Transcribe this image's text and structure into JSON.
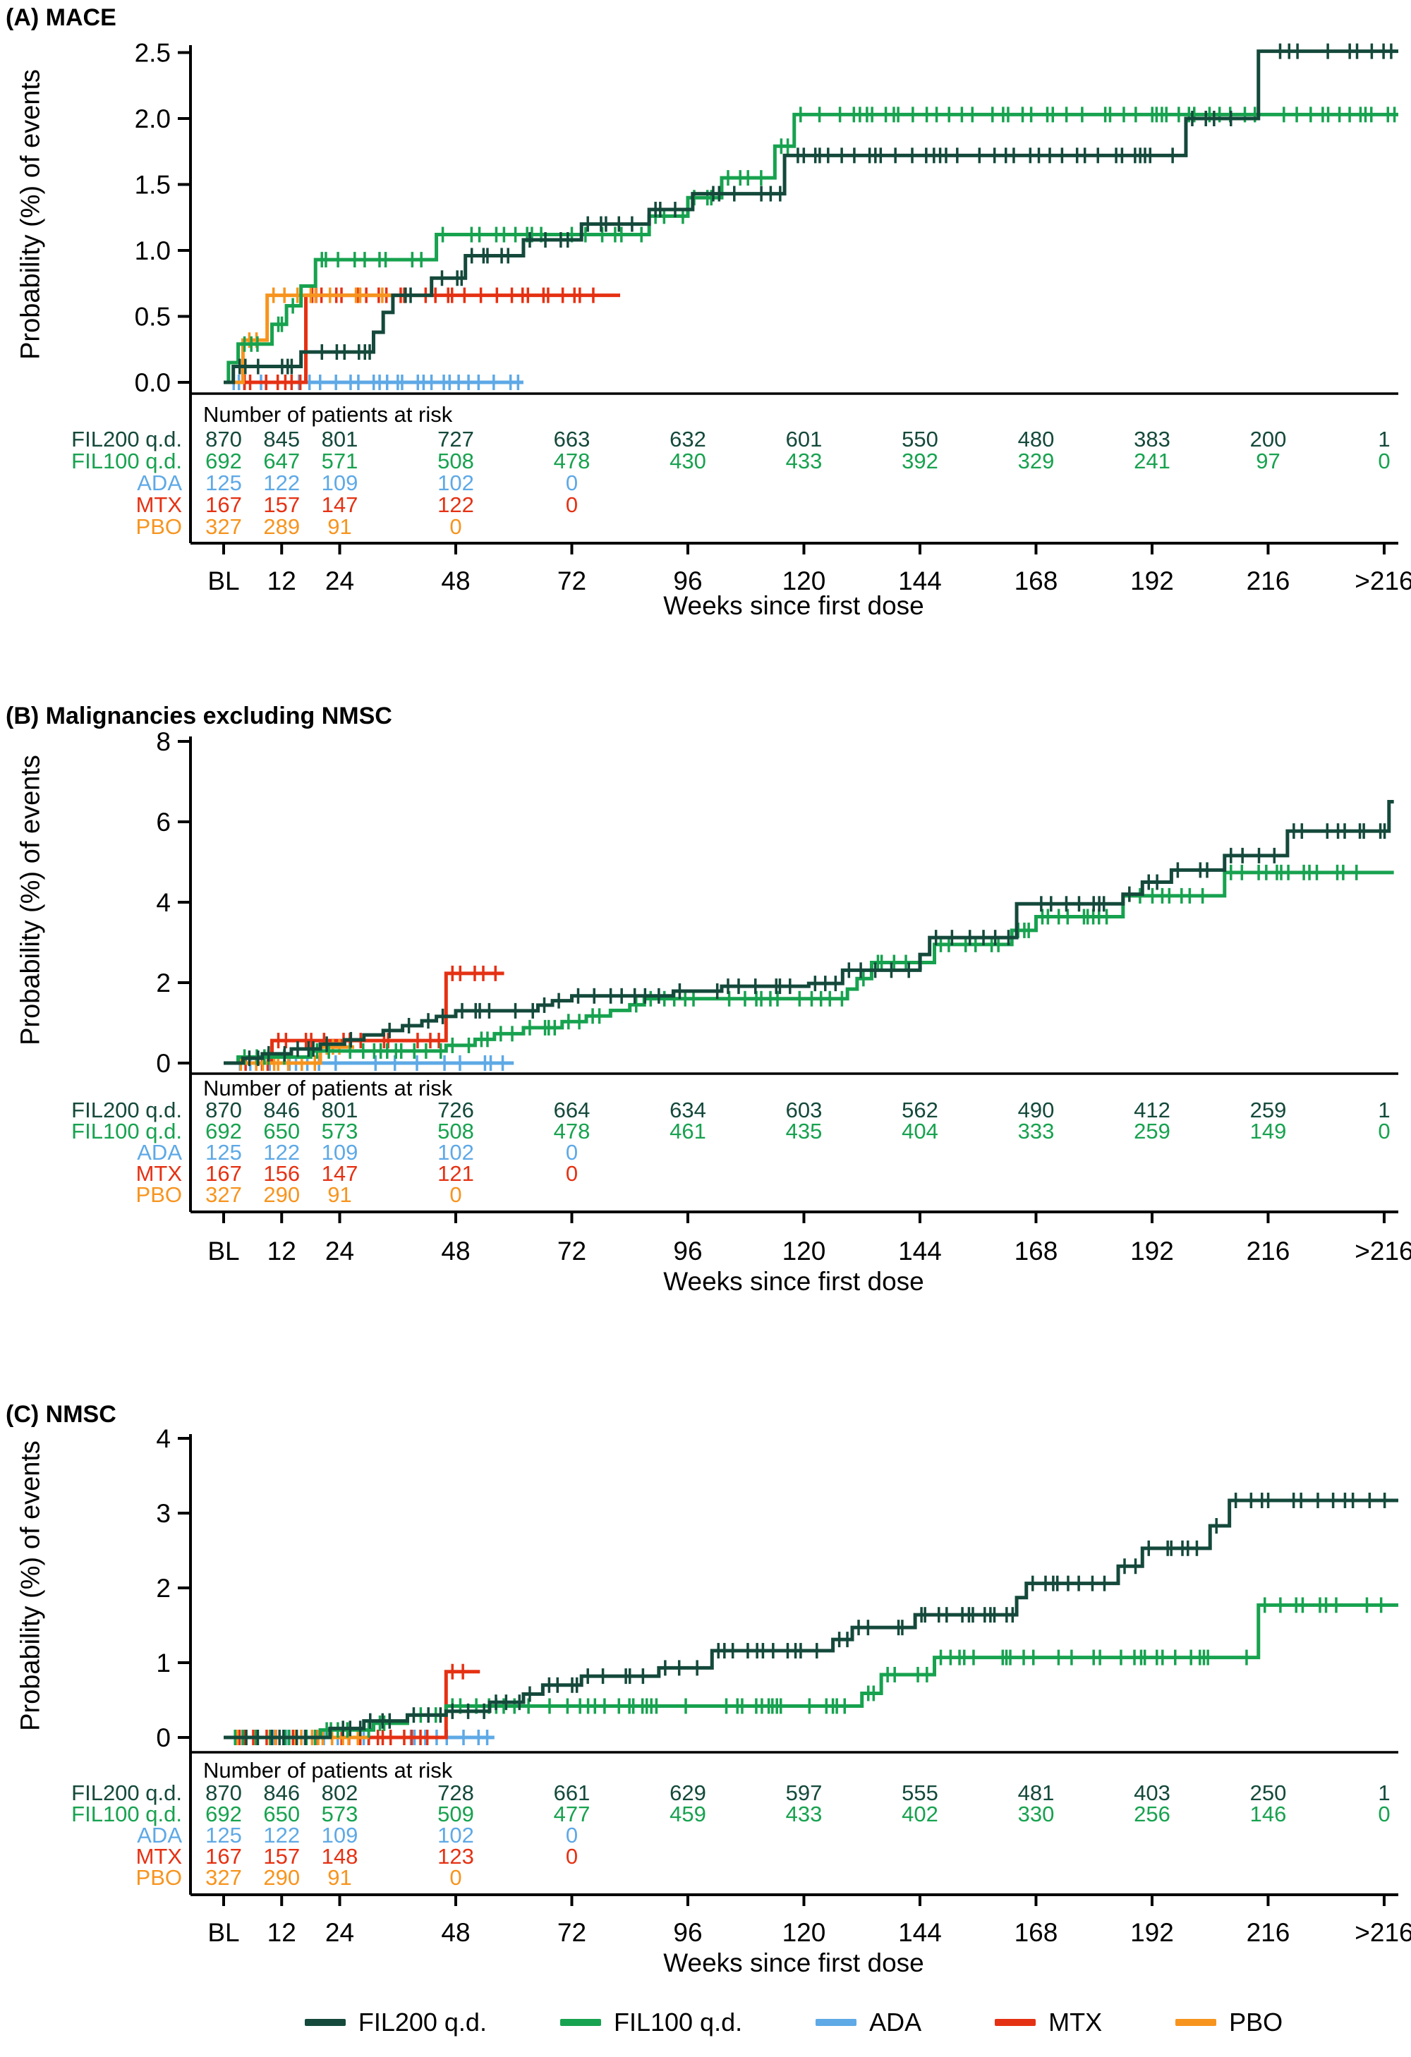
{
  "colors": {
    "FIL200": "#14493b",
    "FIL100": "#17a24f",
    "ADA": "#5ea9e6",
    "MTX": "#e53113",
    "PBO": "#f7941e",
    "axis": "#000000"
  },
  "x_axis": {
    "label": "Weeks since first dose",
    "ticks": [
      {
        "label": "BL",
        "week": 0
      },
      {
        "label": "12",
        "week": 12
      },
      {
        "label": "24",
        "week": 24
      },
      {
        "label": "48",
        "week": 48
      },
      {
        "label": "72",
        "week": 72
      },
      {
        "label": "96",
        "week": 96
      },
      {
        "label": "120",
        "week": 120
      },
      {
        "label": "144",
        "week": 144
      },
      {
        "label": "168",
        "week": 168
      },
      {
        "label": "192",
        "week": 192
      },
      {
        "label": "216",
        "week": 216
      },
      {
        "label": ">216",
        "week": 240
      }
    ]
  },
  "legend": {
    "items": [
      {
        "key": "FIL200",
        "label": "FIL200 q.d."
      },
      {
        "key": "FIL100",
        "label": "FIL100 q.d."
      },
      {
        "key": "ADA",
        "label": "ADA"
      },
      {
        "key": "MTX",
        "label": "MTX"
      },
      {
        "key": "PBO",
        "label": "PBO"
      }
    ]
  },
  "chart_data": [
    {
      "id": "A",
      "type": "km_step",
      "title": "(A) MACE",
      "ylabel": "Probability (%) of events",
      "ylim": [
        0,
        2.5
      ],
      "yticks": [
        {
          "v": 0,
          "label": "0.0"
        },
        {
          "v": 0.5,
          "label": "0.5"
        },
        {
          "v": 1.0,
          "label": "1.0"
        },
        {
          "v": 1.5,
          "label": "1.5"
        },
        {
          "v": 2.0,
          "label": "2.0"
        },
        {
          "v": 2.5,
          "label": "2.5"
        }
      ],
      "at_risk_header": "Number of patients at risk",
      "at_risk": [
        {
          "key": "FIL200",
          "label": "FIL200 q.d.",
          "counts": [
            870,
            845,
            801,
            727,
            663,
            632,
            601,
            550,
            480,
            383,
            200,
            1
          ]
        },
        {
          "key": "FIL100",
          "label": "FIL100 q.d.",
          "counts": [
            692,
            647,
            571,
            508,
            478,
            430,
            433,
            392,
            329,
            241,
            97,
            0
          ]
        },
        {
          "key": "ADA",
          "label": "ADA",
          "counts": [
            125,
            122,
            109,
            102,
            0
          ]
        },
        {
          "key": "MTX",
          "label": "MTX",
          "counts": [
            167,
            157,
            147,
            122,
            0
          ]
        },
        {
          "key": "PBO",
          "label": "PBO",
          "counts": [
            327,
            289,
            91,
            0
          ]
        }
      ],
      "series": [
        {
          "key": "ADA",
          "name": "ADA",
          "end": 62,
          "points": [
            [
              0,
              0
            ]
          ]
        },
        {
          "key": "MTX",
          "name": "MTX",
          "end": 82,
          "points": [
            [
              0,
              0
            ],
            [
              17,
              0.66
            ]
          ]
        },
        {
          "key": "PBO",
          "name": "PBO",
          "end": 35,
          "points": [
            [
              0,
              0
            ],
            [
              4,
              0.32
            ],
            [
              9,
              0.66
            ]
          ]
        },
        {
          "key": "FIL100",
          "name": "FIL100 q.d.",
          "end": 243,
          "points": [
            [
              0,
              0
            ],
            [
              1,
              0.15
            ],
            [
              3,
              0.29
            ],
            [
              10,
              0.44
            ],
            [
              13,
              0.58
            ],
            [
              16,
              0.73
            ],
            [
              19,
              0.93
            ],
            [
              44,
              1.12
            ],
            [
              88,
              1.26
            ],
            [
              96,
              1.4
            ],
            [
              103,
              1.55
            ],
            [
              114,
              1.79
            ],
            [
              118,
              2.03
            ]
          ]
        },
        {
          "key": "FIL200",
          "name": "FIL200 q.d.",
          "end": 243,
          "points": [
            [
              0,
              0
            ],
            [
              2,
              0.12
            ],
            [
              16,
              0.23
            ],
            [
              31,
              0.38
            ],
            [
              33,
              0.53
            ],
            [
              35,
              0.66
            ],
            [
              43,
              0.79
            ],
            [
              50,
              0.96
            ],
            [
              62,
              1.08
            ],
            [
              74,
              1.2
            ],
            [
              88,
              1.31
            ],
            [
              97,
              1.43
            ],
            [
              116,
              1.72
            ],
            [
              199,
              2.0
            ],
            [
              214,
              2.51
            ]
          ]
        }
      ]
    },
    {
      "id": "B",
      "type": "km_step",
      "title": "(B) Malignancies excluding NMSC",
      "ylabel": "Probability (%) of events",
      "ylim": [
        0,
        8
      ],
      "yticks": [
        {
          "v": 0,
          "label": "0"
        },
        {
          "v": 2,
          "label": "2"
        },
        {
          "v": 4,
          "label": "4"
        },
        {
          "v": 6,
          "label": "6"
        },
        {
          "v": 8,
          "label": "8"
        }
      ],
      "at_risk_header": "Number of patients at risk",
      "at_risk": [
        {
          "key": "FIL200",
          "label": "FIL200 q.d.",
          "counts": [
            870,
            846,
            801,
            726,
            664,
            634,
            603,
            562,
            490,
            412,
            259,
            1
          ]
        },
        {
          "key": "FIL100",
          "label": "FIL100 q.d.",
          "counts": [
            692,
            650,
            573,
            508,
            478,
            461,
            435,
            404,
            333,
            259,
            149,
            0
          ]
        },
        {
          "key": "ADA",
          "label": "ADA",
          "counts": [
            125,
            122,
            109,
            102,
            0
          ]
        },
        {
          "key": "MTX",
          "label": "MTX",
          "counts": [
            167,
            156,
            147,
            121,
            0
          ]
        },
        {
          "key": "PBO",
          "label": "PBO",
          "counts": [
            327,
            290,
            91,
            0
          ]
        }
      ],
      "series": [
        {
          "key": "ADA",
          "name": "ADA",
          "end": 60,
          "points": [
            [
              0,
              0
            ]
          ]
        },
        {
          "key": "MTX",
          "name": "MTX",
          "end": 58,
          "points": [
            [
              0,
              0
            ],
            [
              10,
              0.56
            ],
            [
              46,
              2.23
            ]
          ]
        },
        {
          "key": "PBO",
          "name": "PBO",
          "end": 27,
          "points": [
            [
              0,
              0
            ],
            [
              20,
              0.4
            ]
          ]
        },
        {
          "key": "FIL100",
          "name": "FIL100 q.d.",
          "end": 242,
          "points": [
            [
              0,
              0
            ],
            [
              3,
              0.15
            ],
            [
              18,
              0.3
            ],
            [
              46,
              0.44
            ],
            [
              52,
              0.59
            ],
            [
              56,
              0.73
            ],
            [
              62,
              0.88
            ],
            [
              70,
              1.03
            ],
            [
              75,
              1.17
            ],
            [
              80,
              1.31
            ],
            [
              84,
              1.45
            ],
            [
              87,
              1.6
            ],
            [
              129,
              1.84
            ],
            [
              131,
              2.1
            ],
            [
              134,
              2.5
            ],
            [
              147,
              2.95
            ],
            [
              163,
              3.3
            ],
            [
              168,
              3.64
            ],
            [
              186,
              4.16
            ],
            [
              207,
              4.74
            ]
          ]
        },
        {
          "key": "FIL200",
          "name": "FIL200 q.d.",
          "end": 242,
          "points": [
            [
              0,
              0
            ],
            [
              4,
              0.12
            ],
            [
              8,
              0.23
            ],
            [
              14,
              0.35
            ],
            [
              20,
              0.47
            ],
            [
              25,
              0.58
            ],
            [
              29,
              0.7
            ],
            [
              33,
              0.81
            ],
            [
              37,
              0.93
            ],
            [
              41,
              1.05
            ],
            [
              44,
              1.16
            ],
            [
              48,
              1.3
            ],
            [
              65,
              1.44
            ],
            [
              68,
              1.55
            ],
            [
              72,
              1.67
            ],
            [
              93,
              1.79
            ],
            [
              103,
              1.91
            ],
            [
              121,
              1.98
            ],
            [
              128,
              2.31
            ],
            [
              144,
              2.7
            ],
            [
              146,
              3.12
            ],
            [
              164,
              3.96
            ],
            [
              186,
              4.2
            ],
            [
              190,
              4.5
            ],
            [
              196,
              4.8
            ],
            [
              207,
              5.16
            ],
            [
              220,
              5.77
            ],
            [
              241,
              6.5
            ]
          ]
        }
      ]
    },
    {
      "id": "C",
      "type": "km_step",
      "title": "(C) NMSC",
      "ylabel": "Probability (%) of events",
      "ylim": [
        0,
        4
      ],
      "yticks": [
        {
          "v": 0,
          "label": "0"
        },
        {
          "v": 1,
          "label": "1"
        },
        {
          "v": 2,
          "label": "2"
        },
        {
          "v": 3,
          "label": "3"
        },
        {
          "v": 4,
          "label": "4"
        }
      ],
      "at_risk_header": "Number of patients at risk",
      "at_risk": [
        {
          "key": "FIL200",
          "label": "FIL200 q.d.",
          "counts": [
            870,
            846,
            802,
            728,
            661,
            629,
            597,
            555,
            481,
            403,
            250,
            1
          ]
        },
        {
          "key": "FIL100",
          "label": "FIL100 q.d.",
          "counts": [
            692,
            650,
            573,
            509,
            477,
            459,
            433,
            402,
            330,
            256,
            146,
            0
          ]
        },
        {
          "key": "ADA",
          "label": "ADA",
          "counts": [
            125,
            122,
            109,
            102,
            0
          ]
        },
        {
          "key": "MTX",
          "label": "MTX",
          "counts": [
            167,
            157,
            148,
            123,
            0
          ]
        },
        {
          "key": "PBO",
          "label": "PBO",
          "counts": [
            327,
            290,
            91,
            0
          ]
        }
      ],
      "series": [
        {
          "key": "ADA",
          "name": "ADA",
          "end": 56,
          "points": [
            [
              0,
              0
            ]
          ]
        },
        {
          "key": "MTX",
          "name": "MTX",
          "end": 53,
          "points": [
            [
              0,
              0
            ],
            [
              46,
              0.88
            ]
          ]
        },
        {
          "key": "PBO",
          "name": "PBO",
          "end": 30,
          "points": [
            [
              0,
              0
            ]
          ]
        },
        {
          "key": "FIL100",
          "name": "FIL100 q.d.",
          "end": 243,
          "points": [
            [
              0,
              0
            ],
            [
              20,
              0.1
            ],
            [
              31,
              0.19
            ],
            [
              38,
              0.3
            ],
            [
              46,
              0.42
            ],
            [
              132,
              0.59
            ],
            [
              136,
              0.84
            ],
            [
              147,
              1.07
            ],
            [
              214,
              1.77
            ]
          ]
        },
        {
          "key": "FIL200",
          "name": "FIL200 q.d.",
          "end": 243,
          "points": [
            [
              0,
              0
            ],
            [
              22,
              0.12
            ],
            [
              29,
              0.22
            ],
            [
              38,
              0.3
            ],
            [
              46,
              0.35
            ],
            [
              55,
              0.47
            ],
            [
              62,
              0.58
            ],
            [
              66,
              0.7
            ],
            [
              74,
              0.82
            ],
            [
              90,
              0.93
            ],
            [
              101,
              1.16
            ],
            [
              126,
              1.31
            ],
            [
              130,
              1.47
            ],
            [
              143,
              1.64
            ],
            [
              164,
              1.87
            ],
            [
              166,
              2.06
            ],
            [
              185,
              2.29
            ],
            [
              190,
              2.53
            ],
            [
              204,
              2.83
            ],
            [
              208,
              3.17
            ]
          ]
        }
      ]
    }
  ]
}
